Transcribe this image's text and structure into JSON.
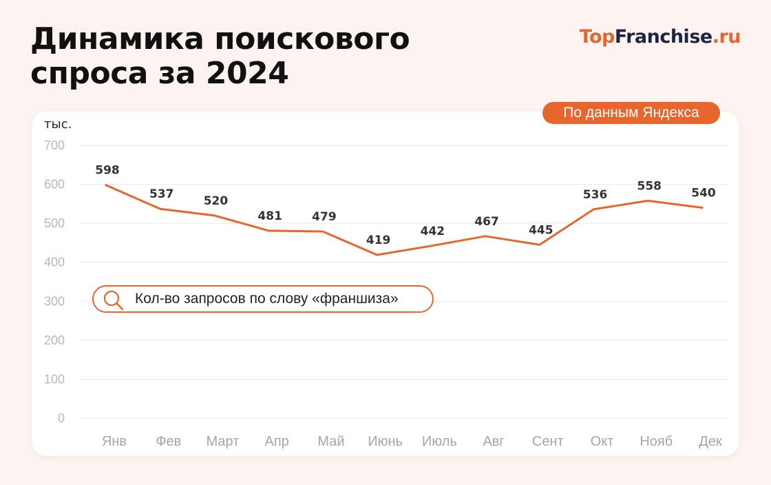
{
  "header": {
    "title_line1": "Динамика поискового",
    "title_line2": "спроса за 2024",
    "logo_top": "Top",
    "logo_franchise": "Franchise",
    "logo_ru": ".ru"
  },
  "source_badge": "По данным Яндекса",
  "colors": {
    "accent": "#e8652e",
    "grid": "#e6e6e6",
    "background": "#fdf4f1"
  },
  "chart_data": {
    "type": "line",
    "title": "Динамика поискового спроса за 2024",
    "ylabel": "тыс.",
    "ylim": [
      0,
      700
    ],
    "yticks": [
      0,
      100,
      200,
      300,
      400,
      500,
      600,
      700
    ],
    "grid": true,
    "legend_position": "middle-left",
    "categories": [
      "Янв",
      "Фев",
      "Март",
      "Апр",
      "Май",
      "Июнь",
      "Июль",
      "Авг",
      "Сент",
      "Окт",
      "Нояб",
      "Дек"
    ],
    "series": [
      {
        "name": "Кол-во запросов по слову «франшиза»",
        "values": [
          598,
          537,
          520,
          481,
          479,
          419,
          442,
          467,
          445,
          536,
          558,
          540
        ],
        "color": "#e8652e",
        "legend_icon": "search-icon"
      }
    ]
  }
}
